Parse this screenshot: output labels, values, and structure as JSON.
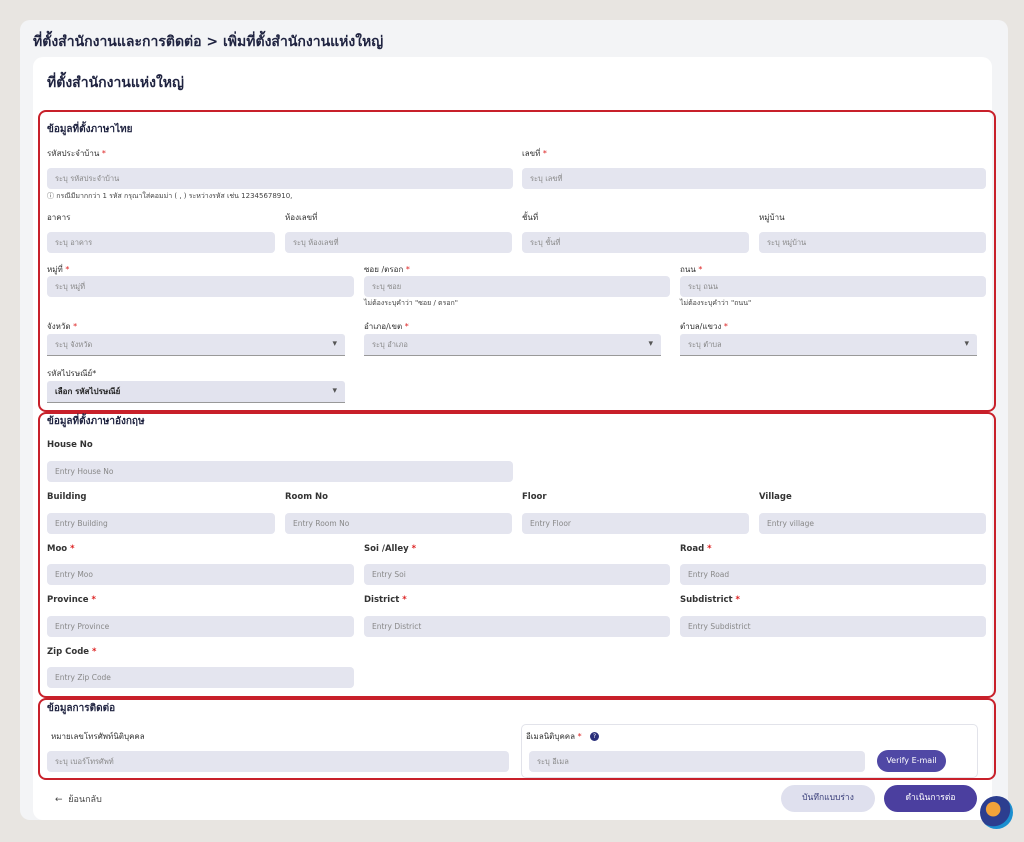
{
  "breadcrumb": "ที่ตั้งสำนักงานและการติดต่อ > เพิ่มที่ตั้งสำนักงานแห่งใหญ่",
  "card_title": "ที่ตั้งสำนักงานแห่งใหญ่",
  "thai": {
    "title": "ข้อมูลที่ตั้งภาษาไทย",
    "house_code": {
      "label": "รหัสประจำบ้าน",
      "required": true,
      "placeholder": "ระบุ รหัสประจำบ้าน",
      "hint": "ⓘ กรณีมีมากกว่า 1 รหัส กรุณาใส่คอมม่า ( , ) ระหว่างรหัส เช่น 12345678910,"
    },
    "house_no": {
      "label": "เลขที่",
      "required": true,
      "placeholder": "ระบุ เลขที่"
    },
    "building": {
      "label": "อาคาร",
      "placeholder": "ระบุ อาคาร"
    },
    "room": {
      "label": "ห้องเลขที่",
      "placeholder": "ระบุ ห้องเลขที่"
    },
    "floor": {
      "label": "ชั้นที่",
      "placeholder": "ระบุ ชั้นที่"
    },
    "village": {
      "label": "หมู่บ้าน",
      "placeholder": "ระบุ หมู่บ้าน"
    },
    "moo": {
      "label": "หมู่ที่",
      "required": true,
      "placeholder": "ระบุ หมู่ที่"
    },
    "soi": {
      "label": "ซอย /ตรอก",
      "required": true,
      "placeholder": "ระบุ ซอย",
      "hint": "ไม่ต้องระบุคำว่า \"ซอย / ตรอก\""
    },
    "road": {
      "label": "ถนน",
      "required": true,
      "placeholder": "ระบุ ถนน",
      "hint": "ไม่ต้องระบุคำว่า \"ถนน\""
    },
    "province": {
      "label": "จังหวัด",
      "required": true,
      "placeholder": "ระบุ จังหวัด"
    },
    "district": {
      "label": "อำเภอ/เขต",
      "required": true,
      "placeholder": "ระบุ อำเภอ"
    },
    "subdistrict": {
      "label": "ตำบล/แขวง",
      "required": true,
      "placeholder": "ระบุ ตำบล"
    },
    "zip": {
      "label": "รหัสไปรษณีย์*",
      "value": "เลือก รหัสไปรษณีย์"
    }
  },
  "english": {
    "title": "ข้อมูลที่ตั้งภาษาอังกฤษ",
    "house_no": {
      "label": "House No",
      "placeholder": "Entry House No"
    },
    "building": {
      "label": "Building",
      "placeholder": "Entry Building"
    },
    "room": {
      "label": "Room No",
      "placeholder": "Entry Room No"
    },
    "floor": {
      "label": "Floor",
      "placeholder": "Entry Floor"
    },
    "village": {
      "label": "Village",
      "placeholder": "Entry village"
    },
    "moo": {
      "label": "Moo",
      "required": true,
      "placeholder": "Entry Moo"
    },
    "soi": {
      "label": "Soi /Alley",
      "required": true,
      "placeholder": "Entry Soi"
    },
    "road": {
      "label": "Road",
      "required": true,
      "placeholder": "Entry Road"
    },
    "province": {
      "label": "Province",
      "required": true,
      "placeholder": "Entry Province"
    },
    "district": {
      "label": "District",
      "required": true,
      "placeholder": "Entry District"
    },
    "subdistrict": {
      "label": "Subdistrict",
      "required": true,
      "placeholder": "Entry Subdistrict"
    },
    "zip": {
      "label": "Zip Code",
      "required": true,
      "placeholder": "Entry Zip Code"
    }
  },
  "contact": {
    "title": "ข้อมูลการติดต่อ",
    "phone": {
      "label": "หมายเลขโทรศัพท์นิติบุคคล",
      "placeholder": "ระบุ เบอร์โทรศัพท์"
    },
    "email": {
      "label": "อีเมลนิติบุคคล",
      "required": true,
      "placeholder": "ระบุ อีเมล"
    },
    "verify_label": "Verify E-mail"
  },
  "footer": {
    "back_label": "ย้อนกลับ",
    "draft_label": "บันทึกแบบร่าง",
    "continue_label": "ดำเนินการต่อ"
  },
  "colors": {
    "primary": "#4b3f9f",
    "section_border": "#c8202a",
    "input_bg": "#e4e5ef"
  }
}
